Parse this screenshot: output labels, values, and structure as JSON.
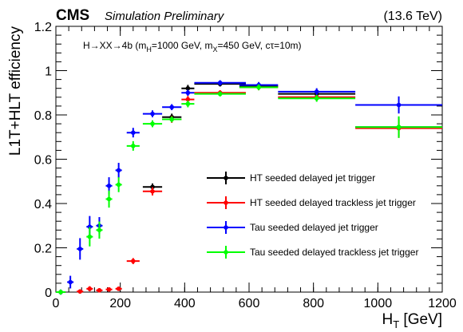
{
  "header": {
    "experiment": "CMS",
    "status": "Simulation Preliminary",
    "energy": "(13.6 TeV)"
  },
  "annotation": {
    "process": "H→XX→4b (m",
    "mh_sub": "H",
    "mh_rest": "=1000 GeV, m",
    "mx_sub": "X",
    "mx_rest": "=450 GeV, cτ=10m)"
  },
  "chart_data": {
    "type": "scatter",
    "title": "",
    "xlabel_main": "H",
    "xlabel_sub": "T",
    "xlabel_unit": " [GeV]",
    "ylabel": "L1T+HLT efficiency",
    "xlim": [
      0,
      1200
    ],
    "ylim": [
      0,
      1.2
    ],
    "xticks": [
      0,
      200,
      400,
      600,
      800,
      1000,
      1200
    ],
    "yticks": [
      0,
      0.2,
      0.4,
      0.6,
      0.8,
      1,
      1.2
    ],
    "xtick_labels": [
      "0",
      "200",
      "400",
      "600",
      "800",
      "1000",
      "1200"
    ],
    "ytick_labels": [
      "0",
      "0.2",
      "0.4",
      "0.6",
      "0.8",
      "1",
      "1.2"
    ],
    "legend_position": "center-right",
    "series": [
      {
        "name": "HT seeded delayed jet trigger",
        "color": "#000000",
        "points": [
          {
            "x": 300,
            "xlo": 270,
            "xhi": 330,
            "y": 0.475,
            "yerr": 0.012
          },
          {
            "x": 360,
            "xlo": 330,
            "xhi": 390,
            "y": 0.79,
            "yerr": 0.012
          },
          {
            "x": 410,
            "xlo": 390,
            "xhi": 430,
            "y": 0.92,
            "yerr": 0.012
          },
          {
            "x": 510,
            "xlo": 430,
            "xhi": 590,
            "y": 0.94,
            "yerr": 0.008
          },
          {
            "x": 630,
            "xlo": 570,
            "xhi": 690,
            "y": 0.93,
            "yerr": 0.01
          },
          {
            "x": 810,
            "xlo": 690,
            "xhi": 930,
            "y": 0.895,
            "yerr": 0.012
          },
          {
            "x": 1065,
            "xlo": 930,
            "xhi": 1200,
            "y": 0.745,
            "yerr": 0.04
          }
        ]
      },
      {
        "name": "HT seeded delayed trackless jet trigger",
        "color": "#ff0000",
        "points": [
          {
            "x": 15,
            "xlo": 0,
            "xhi": 30,
            "y": 0.0,
            "yerr": 0.006
          },
          {
            "x": 75,
            "xlo": 65,
            "xhi": 85,
            "y": 0.003,
            "yerr": 0.006
          },
          {
            "x": 105,
            "xlo": 95,
            "xhi": 115,
            "y": 0.015,
            "yerr": 0.008
          },
          {
            "x": 135,
            "xlo": 125,
            "xhi": 145,
            "y": 0.008,
            "yerr": 0.006
          },
          {
            "x": 165,
            "xlo": 155,
            "xhi": 175,
            "y": 0.012,
            "yerr": 0.006
          },
          {
            "x": 195,
            "xlo": 185,
            "xhi": 205,
            "y": 0.015,
            "yerr": 0.006
          },
          {
            "x": 240,
            "xlo": 220,
            "xhi": 260,
            "y": 0.14,
            "yerr": 0.01
          },
          {
            "x": 300,
            "xlo": 270,
            "xhi": 330,
            "y": 0.455,
            "yerr": 0.015
          },
          {
            "x": 360,
            "xlo": 330,
            "xhi": 390,
            "y": 0.78,
            "yerr": 0.012
          },
          {
            "x": 410,
            "xlo": 390,
            "xhi": 430,
            "y": 0.87,
            "yerr": 0.012
          },
          {
            "x": 510,
            "xlo": 430,
            "xhi": 590,
            "y": 0.9,
            "yerr": 0.008
          },
          {
            "x": 630,
            "xlo": 570,
            "xhi": 690,
            "y": 0.925,
            "yerr": 0.01
          },
          {
            "x": 810,
            "xlo": 690,
            "xhi": 930,
            "y": 0.88,
            "yerr": 0.012
          },
          {
            "x": 1065,
            "xlo": 930,
            "xhi": 1200,
            "y": 0.74,
            "yerr": 0.04
          }
        ]
      },
      {
        "name": "Tau seeded delayed jet trigger",
        "color": "#0000ff",
        "points": [
          {
            "x": 15,
            "xlo": 0,
            "xhi": 30,
            "y": 0.0,
            "yerr": 0.008
          },
          {
            "x": 45,
            "xlo": 35,
            "xhi": 55,
            "y": 0.045,
            "yerr": 0.025
          },
          {
            "x": 75,
            "xlo": 65,
            "xhi": 85,
            "y": 0.195,
            "yerr": 0.045
          },
          {
            "x": 105,
            "xlo": 95,
            "xhi": 115,
            "y": 0.295,
            "yerr": 0.045
          },
          {
            "x": 135,
            "xlo": 125,
            "xhi": 145,
            "y": 0.3,
            "yerr": 0.035
          },
          {
            "x": 165,
            "xlo": 155,
            "xhi": 175,
            "y": 0.48,
            "yerr": 0.035
          },
          {
            "x": 195,
            "xlo": 185,
            "xhi": 205,
            "y": 0.55,
            "yerr": 0.03
          },
          {
            "x": 240,
            "xlo": 220,
            "xhi": 260,
            "y": 0.72,
            "yerr": 0.018
          },
          {
            "x": 300,
            "xlo": 270,
            "xhi": 330,
            "y": 0.805,
            "yerr": 0.012
          },
          {
            "x": 360,
            "xlo": 330,
            "xhi": 390,
            "y": 0.835,
            "yerr": 0.01
          },
          {
            "x": 410,
            "xlo": 390,
            "xhi": 430,
            "y": 0.9,
            "yerr": 0.01
          },
          {
            "x": 510,
            "xlo": 430,
            "xhi": 590,
            "y": 0.945,
            "yerr": 0.008
          },
          {
            "x": 630,
            "xlo": 570,
            "xhi": 690,
            "y": 0.935,
            "yerr": 0.01
          },
          {
            "x": 810,
            "xlo": 690,
            "xhi": 930,
            "y": 0.905,
            "yerr": 0.012
          },
          {
            "x": 1065,
            "xlo": 930,
            "xhi": 1200,
            "y": 0.845,
            "yerr": 0.035
          }
        ]
      },
      {
        "name": "Tau seeded delayed trackless jet trigger",
        "color": "#00ff00",
        "points": [
          {
            "x": 15,
            "xlo": 0,
            "xhi": 30,
            "y": 0.0,
            "yerr": 0.008
          },
          {
            "x": 105,
            "xlo": 95,
            "xhi": 115,
            "y": 0.25,
            "yerr": 0.04
          },
          {
            "x": 135,
            "xlo": 125,
            "xhi": 145,
            "y": 0.28,
            "yerr": 0.035
          },
          {
            "x": 165,
            "xlo": 155,
            "xhi": 175,
            "y": 0.42,
            "yerr": 0.035
          },
          {
            "x": 195,
            "xlo": 185,
            "xhi": 205,
            "y": 0.485,
            "yerr": 0.03
          },
          {
            "x": 240,
            "xlo": 220,
            "xhi": 260,
            "y": 0.66,
            "yerr": 0.018
          },
          {
            "x": 300,
            "xlo": 270,
            "xhi": 330,
            "y": 0.76,
            "yerr": 0.012
          },
          {
            "x": 360,
            "xlo": 330,
            "xhi": 390,
            "y": 0.78,
            "yerr": 0.01
          },
          {
            "x": 410,
            "xlo": 390,
            "xhi": 430,
            "y": 0.85,
            "yerr": 0.012
          },
          {
            "x": 510,
            "xlo": 430,
            "xhi": 590,
            "y": 0.895,
            "yerr": 0.008
          },
          {
            "x": 630,
            "xlo": 570,
            "xhi": 690,
            "y": 0.925,
            "yerr": 0.01
          },
          {
            "x": 810,
            "xlo": 690,
            "xhi": 930,
            "y": 0.875,
            "yerr": 0.012
          },
          {
            "x": 1065,
            "xlo": 930,
            "xhi": 1200,
            "y": 0.745,
            "yerr": 0.045
          }
        ]
      }
    ]
  }
}
